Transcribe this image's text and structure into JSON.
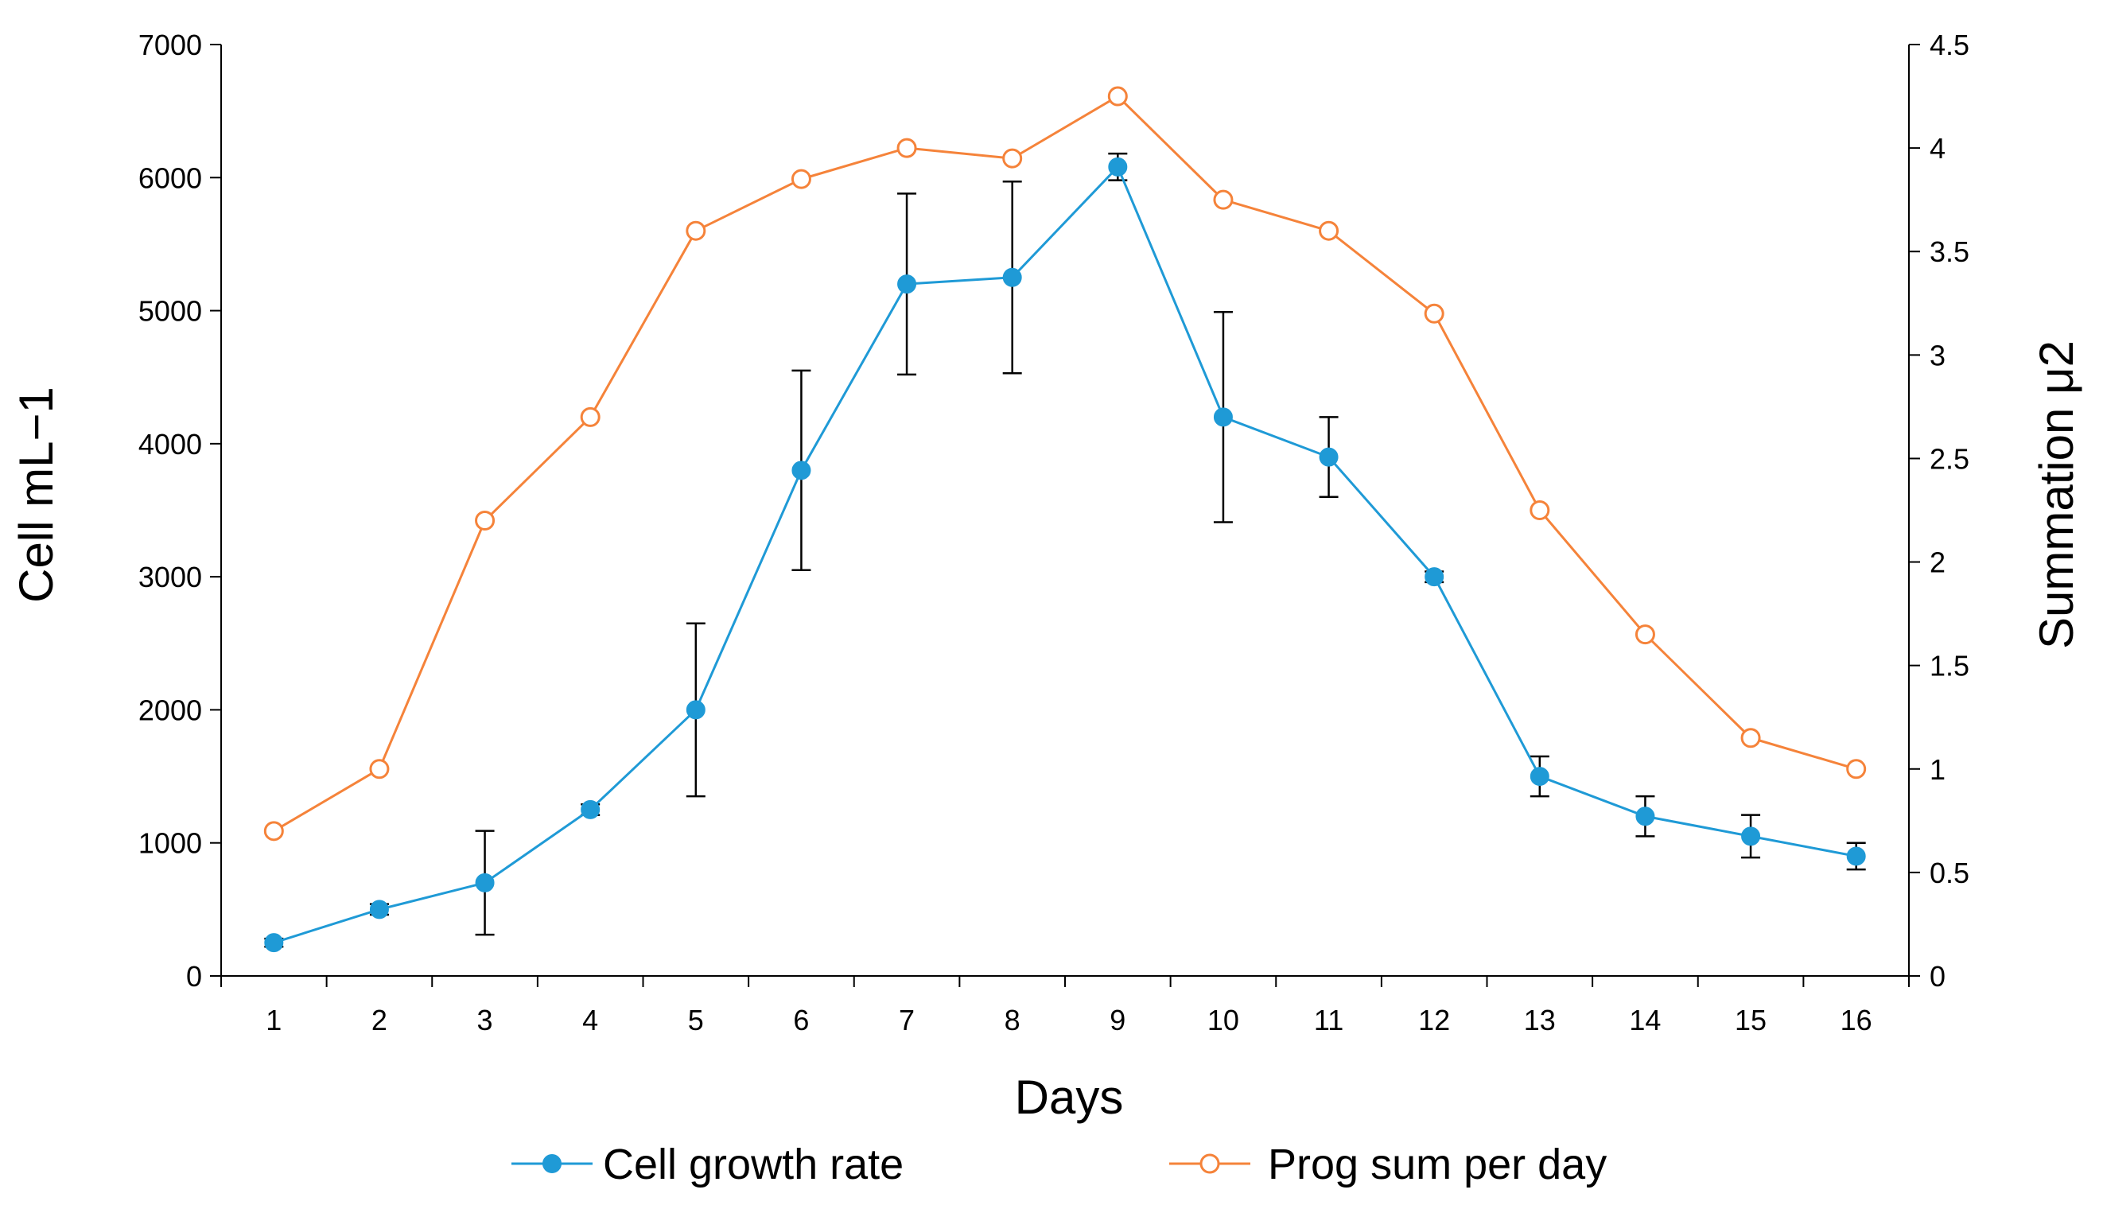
{
  "chart_data": {
    "type": "line",
    "title": "",
    "xlabel": "Days",
    "ylabel": "Cell mL−1",
    "y2label": "Summation μ2",
    "x": [
      1,
      2,
      3,
      4,
      5,
      6,
      7,
      8,
      9,
      10,
      11,
      12,
      13,
      14,
      15,
      16
    ],
    "x_tick_labels": [
      "1",
      "2",
      "3",
      "4",
      "5",
      "6",
      "7",
      "8",
      "9",
      "10",
      "11",
      "12",
      "13",
      "14",
      "15",
      "16"
    ],
    "ylim": [
      0,
      7000
    ],
    "y_ticks": [
      0,
      1000,
      2000,
      3000,
      4000,
      5000,
      6000,
      7000
    ],
    "y_tick_labels": [
      "0",
      "1000",
      "2000",
      "3000",
      "4000",
      "5000",
      "6000",
      "7000"
    ],
    "y2lim": [
      0,
      4.5
    ],
    "y2_ticks": [
      0,
      0.5,
      1,
      1.5,
      2,
      2.5,
      3,
      3.5,
      4,
      4.5
    ],
    "y2_tick_labels": [
      "0",
      "0.5",
      "1",
      "1.5",
      "2",
      "2.5",
      "3",
      "3.5",
      "4",
      "4.5"
    ],
    "grid": false,
    "legend_position": "bottom-center",
    "series": [
      {
        "name": "Cell growth rate",
        "axis": "left",
        "color": "#1f9ad6",
        "marker": "filled-circle",
        "values": [
          250,
          500,
          700,
          1250,
          2000,
          3800,
          5200,
          5250,
          6080,
          4200,
          3900,
          3000,
          1500,
          1200,
          1050,
          900
        ],
        "error": [
          30,
          40,
          390,
          40,
          650,
          750,
          680,
          720,
          100,
          790,
          300,
          40,
          150,
          150,
          160,
          100
        ]
      },
      {
        "name": "Prog sum per day",
        "axis": "right",
        "color": "#f5833a",
        "marker": "open-circle",
        "values": [
          0.7,
          1.0,
          2.2,
          2.7,
          3.6,
          3.85,
          4.0,
          3.95,
          4.25,
          3.75,
          3.6,
          3.2,
          2.25,
          1.65,
          1.15,
          1.0
        ]
      }
    ]
  }
}
